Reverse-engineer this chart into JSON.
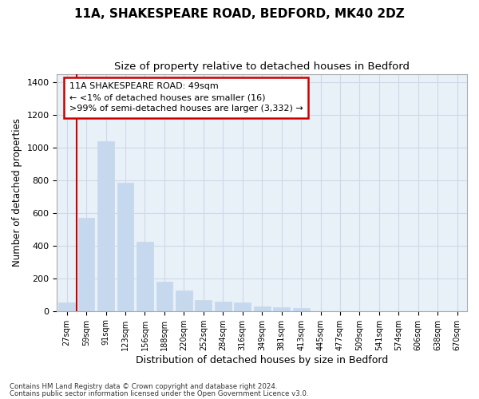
{
  "title1": "11A, SHAKESPEARE ROAD, BEDFORD, MK40 2DZ",
  "title2": "Size of property relative to detached houses in Bedford",
  "xlabel": "Distribution of detached houses by size in Bedford",
  "ylabel": "Number of detached properties",
  "categories": [
    "27sqm",
    "59sqm",
    "91sqm",
    "123sqm",
    "156sqm",
    "188sqm",
    "220sqm",
    "252sqm",
    "284sqm",
    "316sqm",
    "349sqm",
    "381sqm",
    "413sqm",
    "445sqm",
    "477sqm",
    "509sqm",
    "541sqm",
    "574sqm",
    "606sqm",
    "638sqm",
    "670sqm"
  ],
  "values": [
    50,
    570,
    1040,
    785,
    425,
    178,
    128,
    65,
    55,
    50,
    30,
    25,
    18,
    0,
    0,
    0,
    0,
    0,
    0,
    0,
    0
  ],
  "bar_color": "#c5d8ee",
  "bar_edge_color": "#c5d8ee",
  "vline_color": "#cc0000",
  "annotation_text": "11A SHAKESPEARE ROAD: 49sqm\n← <1% of detached houses are smaller (16)\n>99% of semi-detached houses are larger (3,332) →",
  "annotation_box_color": "#ffffff",
  "annotation_box_edge": "#cc0000",
  "ylim": [
    0,
    1450
  ],
  "yticks": [
    0,
    200,
    400,
    600,
    800,
    1000,
    1200,
    1400
  ],
  "footer1": "Contains HM Land Registry data © Crown copyright and database right 2024.",
  "footer2": "Contains public sector information licensed under the Open Government Licence v3.0.",
  "grid_color": "#d0d8e8",
  "bg_color": "#e8f0f8",
  "title1_fontsize": 11,
  "title2_fontsize": 9.5
}
